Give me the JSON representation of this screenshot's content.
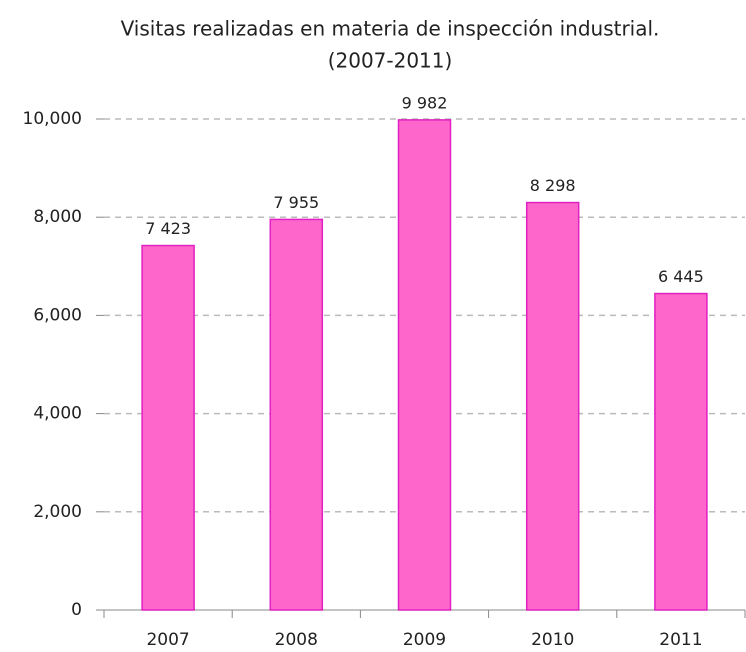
{
  "chart_data": {
    "type": "bar",
    "title": "Visitas realizadas en materia de inspección industrial.",
    "subtitle": "(2007-2011)",
    "categories": [
      "2007",
      "2008",
      "2009",
      "2010",
      "2011"
    ],
    "values": [
      7423,
      7955,
      9982,
      8298,
      6445
    ],
    "value_labels": [
      "7 423",
      "7 955",
      "9 982",
      "8 298",
      "6 445"
    ],
    "color": "#ff66cc",
    "ylim": [
      0,
      10000
    ],
    "yticks": [
      0,
      {
        "value": 2000,
        "label": "2,000"
      },
      {
        "value": 4000,
        "label": "4,000"
      },
      {
        "value": 6000,
        "label": "6,000"
      },
      {
        "value": 8000,
        "label": "8,000"
      },
      {
        "value": 10000,
        "label": "10,000"
      }
    ],
    "grid": true
  }
}
